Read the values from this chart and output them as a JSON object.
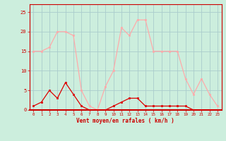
{
  "x": [
    0,
    1,
    2,
    3,
    4,
    5,
    6,
    7,
    8,
    9,
    10,
    11,
    12,
    13,
    14,
    15,
    16,
    17,
    18,
    19,
    20,
    21,
    22,
    23
  ],
  "wind_avg": [
    1,
    2,
    5,
    3,
    7,
    4,
    1,
    0,
    0,
    0,
    1,
    2,
    3,
    3,
    1,
    1,
    1,
    1,
    1,
    1,
    0,
    0,
    0,
    0
  ],
  "wind_gust": [
    15,
    15,
    16,
    20,
    20,
    19,
    5,
    1,
    0,
    6,
    10,
    21,
    19,
    23,
    23,
    15,
    15,
    15,
    15,
    8,
    4,
    8,
    4,
    1
  ],
  "line_avg_color": "#dd0000",
  "line_gust_color": "#ffaaaa",
  "bg_color": "#cceedd",
  "grid_color": "#aacccc",
  "xlabel": "Vent moyen/en rafales ( km/h )",
  "xlabel_color": "#cc0000",
  "tick_color": "#cc0000",
  "yticks": [
    0,
    5,
    10,
    15,
    20,
    25
  ],
  "ylim": [
    0,
    27
  ],
  "xlim": [
    -0.5,
    23.5
  ],
  "spine_color": "#cc0000"
}
